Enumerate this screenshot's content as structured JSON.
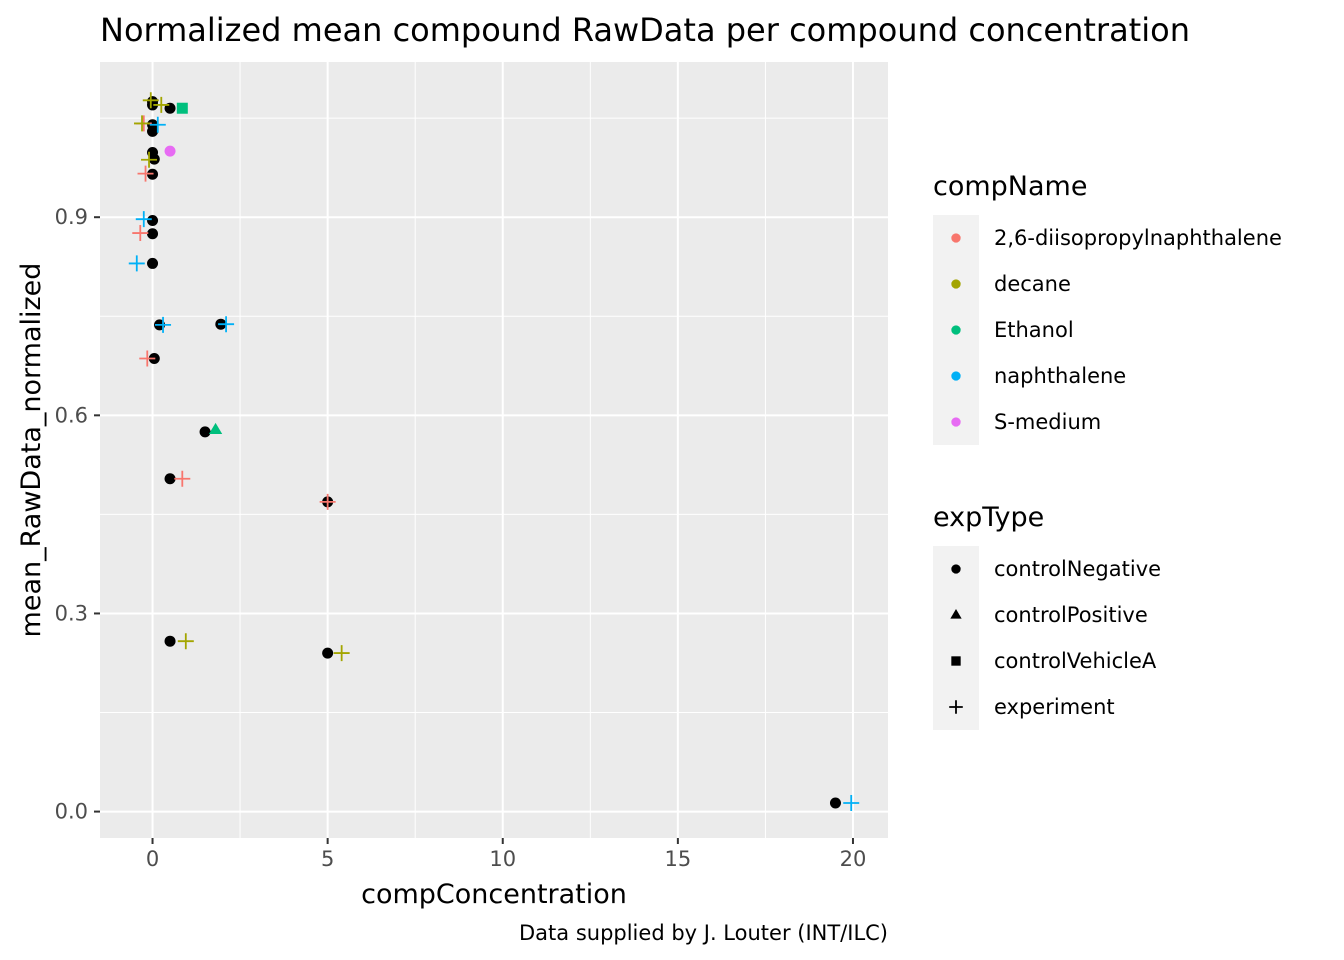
{
  "chart_data": {
    "type": "scatter",
    "title": "Normalized mean compound RawData per compound concentration",
    "xlabel": "compConcentration",
    "ylabel": "mean_RawData_normalized",
    "caption": "Data supplied by J. Louter (INT/ILC)",
    "xlim": [
      -1.5,
      21
    ],
    "ylim": [
      -0.04,
      1.135
    ],
    "x_ticks": [
      0,
      5,
      10,
      15,
      20
    ],
    "x_tick_labels": [
      "0",
      "5",
      "10",
      "15",
      "20"
    ],
    "y_ticks": [
      0.0,
      0.3,
      0.6,
      0.9
    ],
    "y_tick_labels": [
      "0.0",
      "0.3",
      "0.6",
      "0.9"
    ],
    "grid": true,
    "background": "#EBEBEB",
    "legend_position": "right",
    "legends": [
      {
        "title": "compName",
        "items": [
          {
            "label": "2,6-diisopropylnaphthalene",
            "color": "#F8766D",
            "shape": "circle"
          },
          {
            "label": "decane",
            "color": "#A3A500",
            "shape": "circle"
          },
          {
            "label": "Ethanol",
            "color": "#00BF7D",
            "shape": "circle"
          },
          {
            "label": "naphthalene",
            "color": "#00B0F6",
            "shape": "circle"
          },
          {
            "label": "S-medium",
            "color": "#E76BF3",
            "shape": "circle"
          }
        ]
      },
      {
        "title": "expType",
        "items": [
          {
            "label": "controlNegative",
            "color": "#000000",
            "shape": "circle"
          },
          {
            "label": "controlPositive",
            "color": "#000000",
            "shape": "triangle"
          },
          {
            "label": "controlVehicleA",
            "color": "#000000",
            "shape": "square"
          },
          {
            "label": "experiment",
            "color": "#000000",
            "shape": "plus"
          }
        ]
      }
    ],
    "series": [
      {
        "name": "controlNegative",
        "shape": "circle",
        "color": "#000000",
        "points": [
          {
            "x": 0.0,
            "y": 1.07
          },
          {
            "x": 0.0,
            "y": 1.075
          },
          {
            "x": 0.5,
            "y": 1.065
          },
          {
            "x": 0.0,
            "y": 1.04
          },
          {
            "x": 0.0,
            "y": 1.03
          },
          {
            "x": 0.0,
            "y": 0.998
          },
          {
            "x": 0.05,
            "y": 0.988
          },
          {
            "x": 0.0,
            "y": 0.965
          },
          {
            "x": 0.0,
            "y": 0.895
          },
          {
            "x": 0.0,
            "y": 0.875
          },
          {
            "x": 0.0,
            "y": 0.83
          },
          {
            "x": 0.2,
            "y": 0.737
          },
          {
            "x": 1.95,
            "y": 0.738
          },
          {
            "x": 0.05,
            "y": 0.686
          },
          {
            "x": 1.5,
            "y": 0.575
          },
          {
            "x": 0.5,
            "y": 0.504
          },
          {
            "x": 5.0,
            "y": 0.469
          },
          {
            "x": 0.5,
            "y": 0.258
          },
          {
            "x": 5.0,
            "y": 0.24
          },
          {
            "x": 19.5,
            "y": 0.013
          }
        ]
      },
      {
        "name": "2,6-diisopropylnaphthalene",
        "shape": "plus",
        "color": "#F8766D",
        "points": [
          {
            "x": -0.25,
            "y": 1.042
          },
          {
            "x": -0.2,
            "y": 0.966
          },
          {
            "x": -0.35,
            "y": 0.876
          },
          {
            "x": -0.15,
            "y": 0.686
          },
          {
            "x": 0.85,
            "y": 0.504
          },
          {
            "x": 5.0,
            "y": 0.469
          }
        ]
      },
      {
        "name": "decane",
        "shape": "plus",
        "color": "#A3A500",
        "points": [
          {
            "x": -0.05,
            "y": 1.077
          },
          {
            "x": 0.25,
            "y": 1.07
          },
          {
            "x": -0.3,
            "y": 1.042
          },
          {
            "x": -0.1,
            "y": 0.987
          },
          {
            "x": 0.95,
            "y": 0.258
          },
          {
            "x": 5.4,
            "y": 0.24
          }
        ]
      },
      {
        "name": "naphthalene",
        "shape": "plus",
        "color": "#00B0F6",
        "points": [
          {
            "x": 0.15,
            "y": 1.04
          },
          {
            "x": -0.25,
            "y": 0.897
          },
          {
            "x": -0.45,
            "y": 0.83
          },
          {
            "x": 0.3,
            "y": 0.737
          },
          {
            "x": 2.1,
            "y": 0.738
          },
          {
            "x": 19.95,
            "y": 0.013
          }
        ]
      },
      {
        "name": "Ethanol",
        "shape": "square",
        "color": "#00BF7D",
        "points": [
          {
            "x": 0.85,
            "y": 1.065
          }
        ]
      },
      {
        "name": "Ethanol",
        "shape": "triangle",
        "color": "#00BF7D",
        "points": [
          {
            "x": 1.8,
            "y": 0.578
          }
        ]
      },
      {
        "name": "S-medium",
        "shape": "circle",
        "color": "#E76BF3",
        "points": [
          {
            "x": 0.5,
            "y": 1.0
          }
        ]
      }
    ]
  }
}
